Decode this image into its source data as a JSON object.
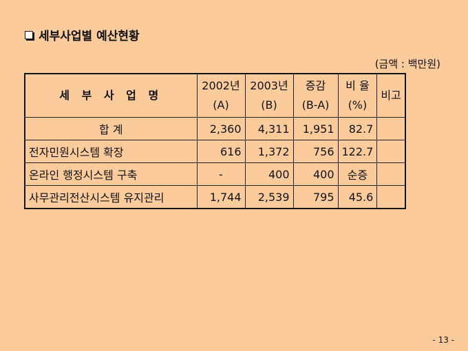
{
  "title": "세부사업별 예산현황",
  "unit_note": "(금액 : 백만원)",
  "table": {
    "headers": [
      {
        "line1": "세 부 사 업 명",
        "line2": ""
      },
      {
        "line1": "2002년",
        "line2": "(A)"
      },
      {
        "line1": "2003년",
        "line2": "(B)"
      },
      {
        "line1": "증감",
        "line2": "(B-A)"
      },
      {
        "line1": "비 율",
        "line2": "(%)"
      },
      {
        "line1": "비고",
        "line2": ""
      }
    ],
    "rows": [
      {
        "name": "합 계",
        "a": "2,360",
        "b": "4,311",
        "diff": "1,951",
        "ratio": "82.7",
        "note": ""
      },
      {
        "name": "전자민원시스템 확장",
        "a": "616",
        "b": "1,372",
        "diff": "756",
        "ratio": "122.7",
        "note": ""
      },
      {
        "name": "온라인 행정시스템 구축",
        "a": "-",
        "b": "400",
        "diff": "400",
        "ratio": "순증",
        "note": ""
      },
      {
        "name": "사무관리전산시스템 유지관리",
        "a": "1,744",
        "b": "2,539",
        "diff": "795",
        "ratio": "45.6",
        "note": ""
      }
    ]
  },
  "page_number": "- 13 -"
}
